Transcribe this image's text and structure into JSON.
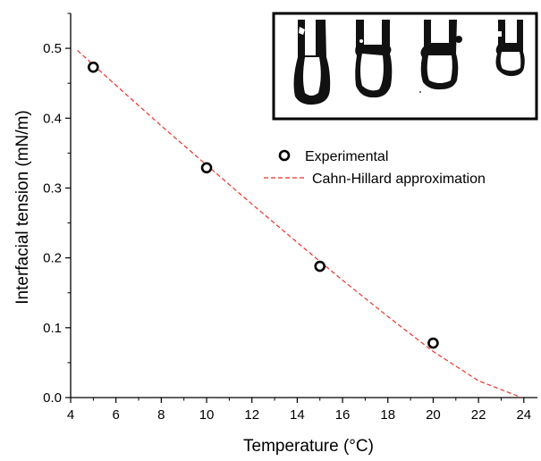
{
  "chart_data": {
    "type": "scatter",
    "xlabel": "Temperature (°C)",
    "ylabel": "Interfacial tension (mN/m)",
    "xlim": [
      4,
      24.6
    ],
    "ylim": [
      0,
      0.55
    ],
    "x_ticks": [
      "4",
      "6",
      "8",
      "10",
      "12",
      "14",
      "16",
      "18",
      "20",
      "22",
      "24"
    ],
    "y_ticks": [
      "0.0",
      "0.1",
      "0.2",
      "0.3",
      "0.4",
      "0.5"
    ],
    "grid": false,
    "legend_position": "upper-right, below inset",
    "series": [
      {
        "name": "Experimental",
        "style": "open-circle-markers",
        "color": "#000000",
        "x": [
          5,
          10,
          15,
          20
        ],
        "y": [
          0.473,
          0.329,
          0.188,
          0.078
        ]
      },
      {
        "name": "Cahn-Hillard approximation",
        "style": "dashed-line",
        "color": "#e8332a",
        "x": [
          4.3,
          6,
          8,
          10,
          12,
          14,
          16,
          18,
          20,
          22,
          23.9
        ],
        "y": [
          0.497,
          0.447,
          0.389,
          0.333,
          0.277,
          0.222,
          0.168,
          0.116,
          0.066,
          0.024,
          0.0
        ]
      }
    ],
    "inset": {
      "description_icon": "droplet-image-inset",
      "droplet_count": 4
    }
  }
}
